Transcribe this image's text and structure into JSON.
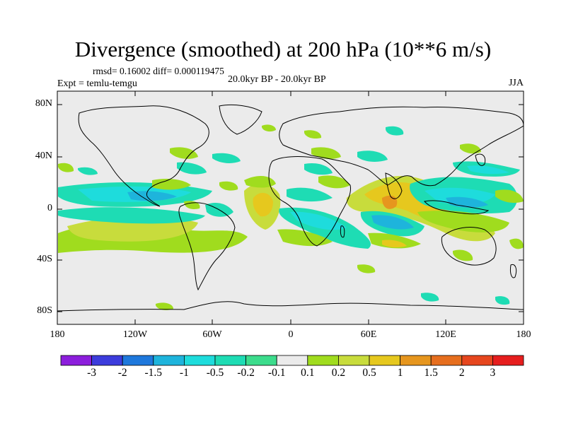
{
  "title": "Divergence (smoothed) at 200 hPa (10**6 m/s)",
  "stats": "rmsd= 0.16002  diff= 0.000119475",
  "experiment": "Expt = temlu-temgu",
  "period": "20.0kyr BP - 20.0kyr BP",
  "season": "JJA",
  "lat_ticks": [
    "80N",
    "40N",
    "0",
    "40S",
    "80S"
  ],
  "lon_ticks": [
    "180",
    "120W",
    "60W",
    "0",
    "60E",
    "120E",
    "180"
  ],
  "colorbar": {
    "labels": [
      "-3",
      "-2",
      "-1.5",
      "-1",
      "-0.5",
      "-0.2",
      "-0.1",
      "0.1",
      "0.2",
      "0.5",
      "1",
      "1.5",
      "2",
      "3"
    ],
    "colors": [
      "#8c1edc",
      "#3c3cdc",
      "#1e78dc",
      "#1eb4dc",
      "#1edcdc",
      "#1edcb4",
      "#3cdc8c",
      "#ebebeb",
      "#a0dc1e",
      "#c8dc3c",
      "#e6c81e",
      "#e6961e",
      "#e66e1e",
      "#e6461e",
      "#e61e1e"
    ]
  },
  "map": {
    "background_color": "#ebebeb",
    "land_outline_color": "#000000"
  }
}
